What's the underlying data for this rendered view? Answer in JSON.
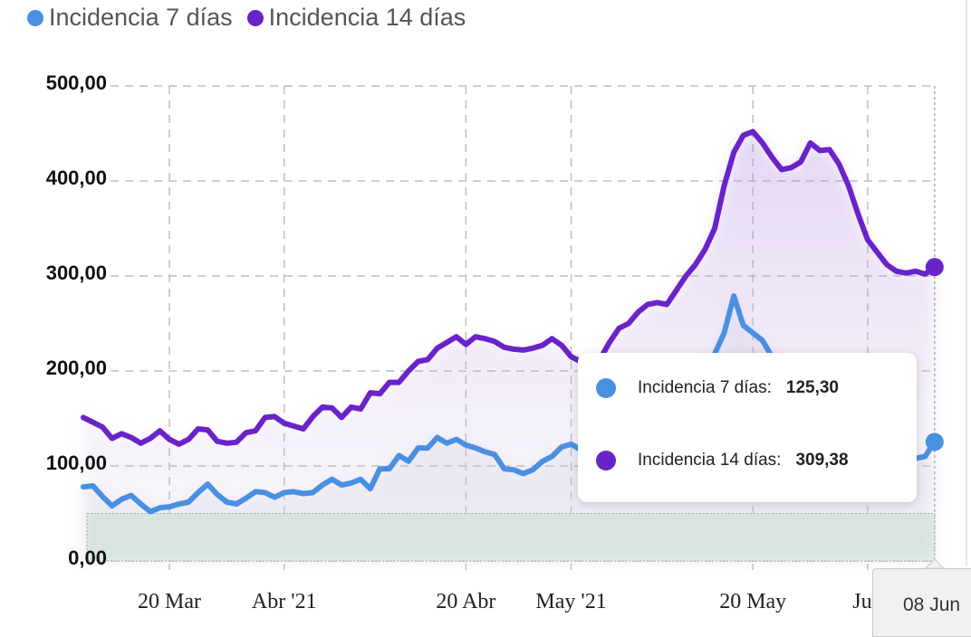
{
  "chart_data": {
    "type": "line",
    "legend_position": "top-left",
    "grid": true,
    "ylim": [
      0,
      500
    ],
    "y_ticks": [
      "0,00",
      "100,00",
      "200,00",
      "300,00",
      "400,00",
      "500,00"
    ],
    "y_tick_values": [
      0,
      100,
      200,
      300,
      400,
      500
    ],
    "x_ticks": [
      {
        "label": "20 Mar",
        "date": "2021-03-20"
      },
      {
        "label": "Abr '21",
        "date": "2021-04-01"
      },
      {
        "label": "20 Abr",
        "date": "2021-04-20"
      },
      {
        "label": "May '21",
        "date": "2021-05-01"
      },
      {
        "label": "20 May",
        "date": "2021-05-20"
      },
      {
        "label": "Jun",
        "date": "2021-06-01"
      }
    ],
    "reference_band": {
      "from": 0,
      "to": 50,
      "color": "#dff3e4"
    },
    "dates": [
      "2021-03-11",
      "2021-03-12",
      "2021-03-13",
      "2021-03-14",
      "2021-03-15",
      "2021-03-16",
      "2021-03-17",
      "2021-03-18",
      "2021-03-19",
      "2021-03-20",
      "2021-03-21",
      "2021-03-22",
      "2021-03-23",
      "2021-03-24",
      "2021-03-25",
      "2021-03-26",
      "2021-03-27",
      "2021-03-28",
      "2021-03-29",
      "2021-03-30",
      "2021-03-31",
      "2021-04-01",
      "2021-04-02",
      "2021-04-03",
      "2021-04-04",
      "2021-04-05",
      "2021-04-06",
      "2021-04-07",
      "2021-04-08",
      "2021-04-09",
      "2021-04-10",
      "2021-04-11",
      "2021-04-12",
      "2021-04-13",
      "2021-04-14",
      "2021-04-15",
      "2021-04-16",
      "2021-04-17",
      "2021-04-18",
      "2021-04-19",
      "2021-04-20",
      "2021-04-21",
      "2021-04-22",
      "2021-04-23",
      "2021-04-24",
      "2021-04-25",
      "2021-04-26",
      "2021-04-27",
      "2021-04-28",
      "2021-04-29",
      "2021-04-30",
      "2021-05-01",
      "2021-05-02",
      "2021-05-03",
      "2021-05-04",
      "2021-05-05",
      "2021-05-06",
      "2021-05-07",
      "2021-05-08",
      "2021-05-09",
      "2021-05-10",
      "2021-05-11",
      "2021-05-12",
      "2021-05-13",
      "2021-05-14",
      "2021-05-15",
      "2021-05-16",
      "2021-05-17",
      "2021-05-18",
      "2021-05-19",
      "2021-05-20",
      "2021-05-21",
      "2021-05-22",
      "2021-05-23",
      "2021-05-24",
      "2021-05-25",
      "2021-05-26",
      "2021-05-27",
      "2021-05-28",
      "2021-05-29",
      "2021-05-30",
      "2021-05-31",
      "2021-06-01",
      "2021-06-02",
      "2021-06-03",
      "2021-06-04",
      "2021-06-05",
      "2021-06-06",
      "2021-06-07",
      "2021-06-08"
    ],
    "series": [
      {
        "name": "Incidencia 7 días",
        "color": "#4a90e2",
        "values": [
          78,
          79,
          68,
          58,
          65,
          69,
          60,
          52,
          56,
          57,
          60,
          62,
          72,
          81,
          70,
          62,
          60,
          66,
          73,
          72,
          67,
          72,
          73,
          71,
          72,
          80,
          86,
          80,
          82,
          86,
          76,
          97,
          97,
          111,
          105,
          119,
          119,
          130,
          124,
          128,
          122,
          119,
          115,
          112,
          97,
          96,
          92,
          96,
          105,
          110,
          120,
          123,
          117,
          110,
          104,
          100,
          112,
          125,
          140,
          150,
          155,
          160,
          165,
          175,
          185,
          200,
          218,
          240,
          279,
          248,
          240,
          232,
          215,
          190,
          165,
          150,
          165,
          180,
          185,
          178,
          160,
          140,
          125,
          112,
          105,
          100,
          102,
          108,
          110,
          125.3
        ]
      },
      {
        "name": "Incidencia 14 días",
        "color": "#6a22c9",
        "values": [
          151,
          146,
          141,
          129,
          134,
          130,
          124,
          129,
          137,
          128,
          123,
          128,
          139,
          138,
          126,
          124,
          125,
          135,
          137,
          151,
          152,
          145,
          142,
          139,
          152,
          162,
          161,
          151,
          162,
          160,
          177,
          176,
          188,
          188,
          200,
          210,
          212,
          224,
          230,
          236,
          228,
          236,
          234,
          231,
          225,
          223,
          222,
          224,
          227,
          234,
          227,
          215,
          210,
          205,
          212,
          230,
          245,
          250,
          262,
          270,
          272,
          270,
          285,
          300,
          312,
          328,
          350,
          395,
          430,
          448,
          452,
          440,
          425,
          412,
          414,
          420,
          440,
          432,
          433,
          418,
          395,
          365,
          338,
          325,
          312,
          305,
          303,
          305,
          302,
          309.38
        ]
      }
    ]
  },
  "legend": [
    {
      "label": "Incidencia 7 días",
      "color": "#4a90e2"
    },
    {
      "label": "Incidencia 14 días",
      "color": "#6a22c9"
    }
  ],
  "tooltip": {
    "rows": [
      {
        "label": "Incidencia 7 días:",
        "value": "125,30",
        "color": "#4a90e2"
      },
      {
        "label": "Incidencia 14 días:",
        "value": "309,38",
        "color": "#6a22c9"
      }
    ]
  },
  "crosshair_label": "08 Jun"
}
